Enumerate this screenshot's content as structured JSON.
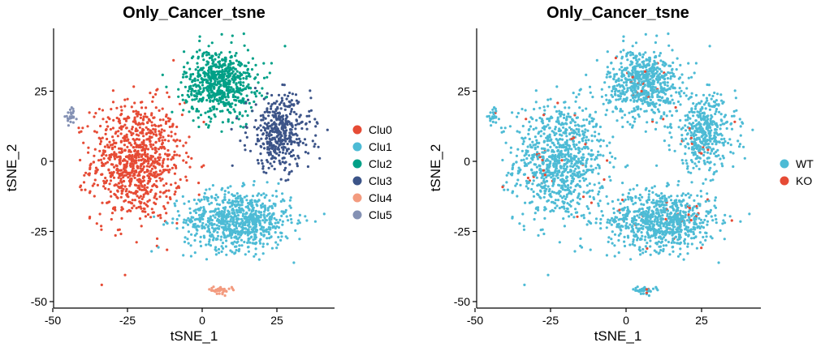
{
  "chart_data": [
    {
      "type": "scatter",
      "title": "Only_Cancer_tsne",
      "xlabel": "tSNE_1",
      "ylabel": "tSNE_2",
      "xlim": [
        -50,
        45
      ],
      "ylim": [
        -52,
        48
      ],
      "xticks": [
        -50,
        -25,
        0,
        25
      ],
      "yticks": [
        -50,
        -25,
        0,
        25
      ],
      "xtick_labels": [
        "-50",
        "-25",
        "0",
        "25"
      ],
      "ytick_labels": [
        "-50",
        "-25",
        "0",
        "25"
      ],
      "legend_position": "right",
      "series": [
        {
          "name": "Clu0",
          "color": "#E64B35",
          "center": [
            -22,
            0
          ],
          "spread": [
            10,
            14
          ],
          "count": 900
        },
        {
          "name": "Clu1",
          "color": "#4DBBD5",
          "center": [
            12,
            -21
          ],
          "spread": [
            12,
            7
          ],
          "count": 800
        },
        {
          "name": "Clu2",
          "color": "#00A087",
          "center": [
            6,
            28
          ],
          "spread": [
            8,
            8
          ],
          "count": 650
        },
        {
          "name": "Clu3",
          "color": "#3C5488",
          "center": [
            26,
            10
          ],
          "spread": [
            7,
            9
          ],
          "count": 420
        },
        {
          "name": "Clu4",
          "color": "#F39B7F",
          "center": [
            6,
            -46
          ],
          "spread": [
            2.5,
            0.8
          ],
          "count": 40
        },
        {
          "name": "Clu5",
          "color": "#8491B4",
          "center": [
            -44,
            16
          ],
          "spread": [
            1.2,
            1.6
          ],
          "count": 25
        }
      ]
    },
    {
      "type": "scatter",
      "title": "Only_Cancer_tsne",
      "xlabel": "tSNE_1",
      "ylabel": "tSNE_2",
      "xlim": [
        -50,
        45
      ],
      "ylim": [
        -52,
        48
      ],
      "xticks": [
        -50,
        -25,
        0,
        25
      ],
      "yticks": [
        -50,
        -25,
        0,
        25
      ],
      "xtick_labels": [
        "-50",
        "-25",
        "0",
        "25"
      ],
      "ytick_labels": [
        "-50",
        "-25",
        "0",
        "25"
      ],
      "legend_position": "right",
      "series": [
        {
          "name": "WT",
          "color": "#4DBBD5"
        },
        {
          "name": "KO",
          "color": "#E64B35"
        }
      ]
    }
  ]
}
